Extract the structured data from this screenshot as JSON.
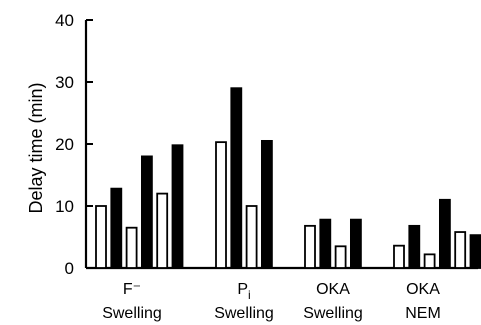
{
  "chart_data": {
    "type": "bar",
    "title": "",
    "xlabel": "",
    "ylabel": "Delay time (min)",
    "ylim": [
      0,
      40
    ],
    "yticks": [
      0,
      10,
      20,
      30,
      40
    ],
    "grid": false,
    "legend": "none",
    "bar_styles": [
      "open",
      "solid"
    ],
    "groups": [
      {
        "label_lines": [
          "F⁻",
          "Swelling"
        ],
        "bars": [
          {
            "style": "open",
            "value": 10
          },
          {
            "style": "solid",
            "value": 12.8
          },
          {
            "style": "open",
            "value": 6.5
          },
          {
            "style": "solid",
            "value": 18
          },
          {
            "style": "open",
            "value": 12
          },
          {
            "style": "solid",
            "value": 19.8
          }
        ]
      },
      {
        "label_lines": [
          "P",
          "Swelling"
        ],
        "label_subscript": "i",
        "bars": [
          {
            "style": "open",
            "value": 20.3
          },
          {
            "style": "solid",
            "value": 29
          },
          {
            "style": "open",
            "value": 10
          },
          {
            "style": "solid",
            "value": 20.5
          }
        ]
      },
      {
        "label_lines": [
          "OKA",
          "Swelling"
        ],
        "bars": [
          {
            "style": "open",
            "value": 6.8
          },
          {
            "style": "solid",
            "value": 7.8
          },
          {
            "style": "open",
            "value": 3.5
          },
          {
            "style": "solid",
            "value": 7.8
          }
        ]
      },
      {
        "label_lines": [
          "OKA",
          "NEM"
        ],
        "bars": [
          {
            "style": "open",
            "value": 3.6
          },
          {
            "style": "solid",
            "value": 6.8
          },
          {
            "style": "open",
            "value": 2.2
          },
          {
            "style": "solid",
            "value": 11
          },
          {
            "style": "open",
            "value": 5.8
          },
          {
            "style": "solid",
            "value": 5.3
          }
        ]
      }
    ]
  }
}
